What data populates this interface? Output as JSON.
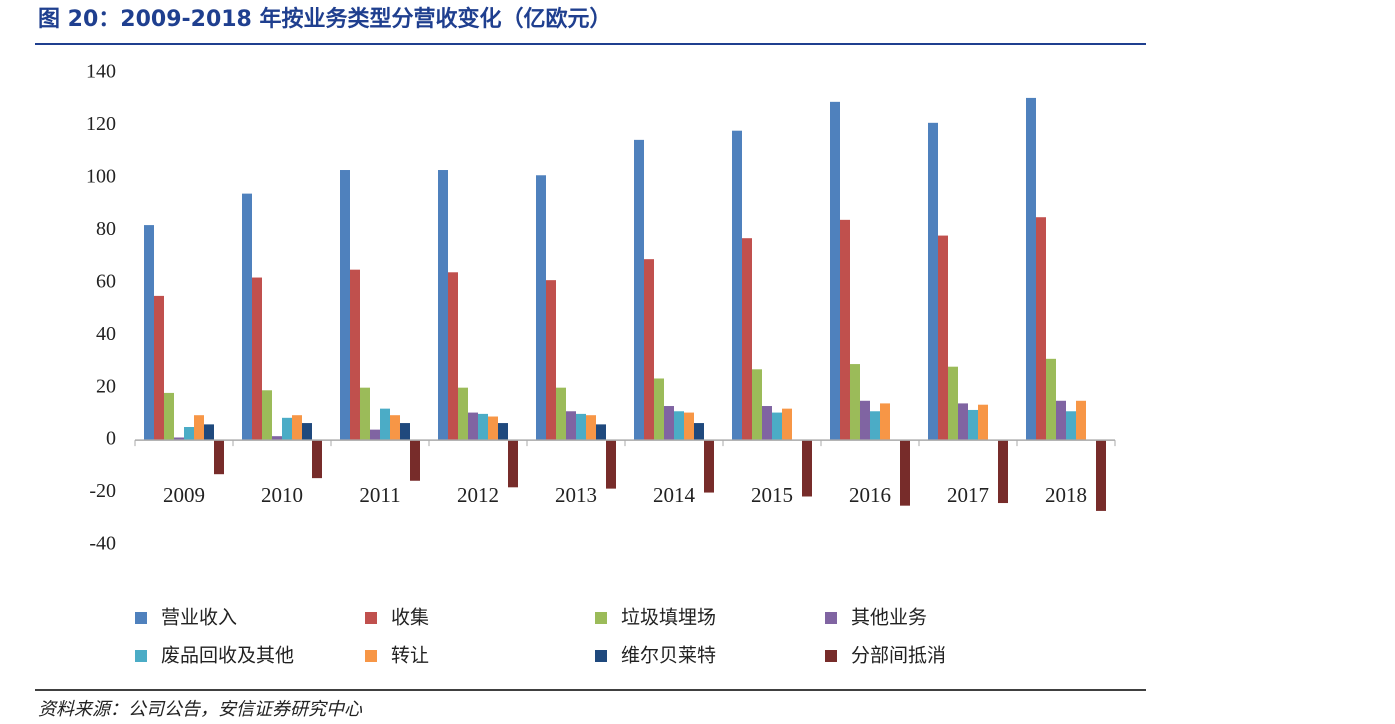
{
  "chart_data": {
    "type": "bar",
    "title": "图 20：2009-2018 年按业务类型分营收变化（亿欧元）",
    "source": "资料来源：公司公告，安信证券研究中心",
    "categories": [
      "2009",
      "2010",
      "2011",
      "2012",
      "2013",
      "2014",
      "2015",
      "2016",
      "2017",
      "2018"
    ],
    "series": [
      {
        "name": "营业收入",
        "color": "#4f81bd",
        "values": [
          82,
          94,
          103,
          103,
          101,
          114.5,
          118,
          129,
          121,
          130.5
        ]
      },
      {
        "name": "收集",
        "color": "#c0504d",
        "values": [
          55,
          62,
          65,
          64,
          61,
          69,
          77,
          84,
          78,
          85
        ]
      },
      {
        "name": "垃圾填埋场",
        "color": "#9bbb59",
        "values": [
          18,
          19,
          20,
          20,
          20,
          23.5,
          27,
          29,
          28,
          31
        ]
      },
      {
        "name": "其他业务",
        "color": "#8064a2",
        "values": [
          1,
          1.5,
          4,
          10.5,
          11,
          13,
          13,
          15,
          14,
          15
        ]
      },
      {
        "name": "废品回收及其他",
        "color": "#4bacc6",
        "values": [
          5,
          8.5,
          12,
          10,
          10,
          11,
          10.5,
          11,
          11.5,
          11
        ]
      },
      {
        "name": "转让",
        "color": "#f79646",
        "values": [
          9.5,
          9.5,
          9.5,
          9,
          9.5,
          10.5,
          12,
          14,
          13.5,
          15
        ]
      },
      {
        "name": "维尔贝莱特",
        "color": "#1f497d",
        "values": [
          6,
          6.5,
          6.5,
          6.5,
          6,
          6.5,
          null,
          null,
          null,
          null
        ]
      },
      {
        "name": "分部间抵消",
        "color": "#772c2a",
        "values": [
          -13,
          -14.5,
          -15.5,
          -18,
          -18.5,
          -20,
          -21.5,
          -25,
          -24,
          -27
        ]
      }
    ],
    "ylim": [
      -40,
      140
    ],
    "yticks": [
      -40,
      -20,
      0,
      20,
      40,
      60,
      80,
      100,
      120,
      140
    ],
    "grid": false
  }
}
